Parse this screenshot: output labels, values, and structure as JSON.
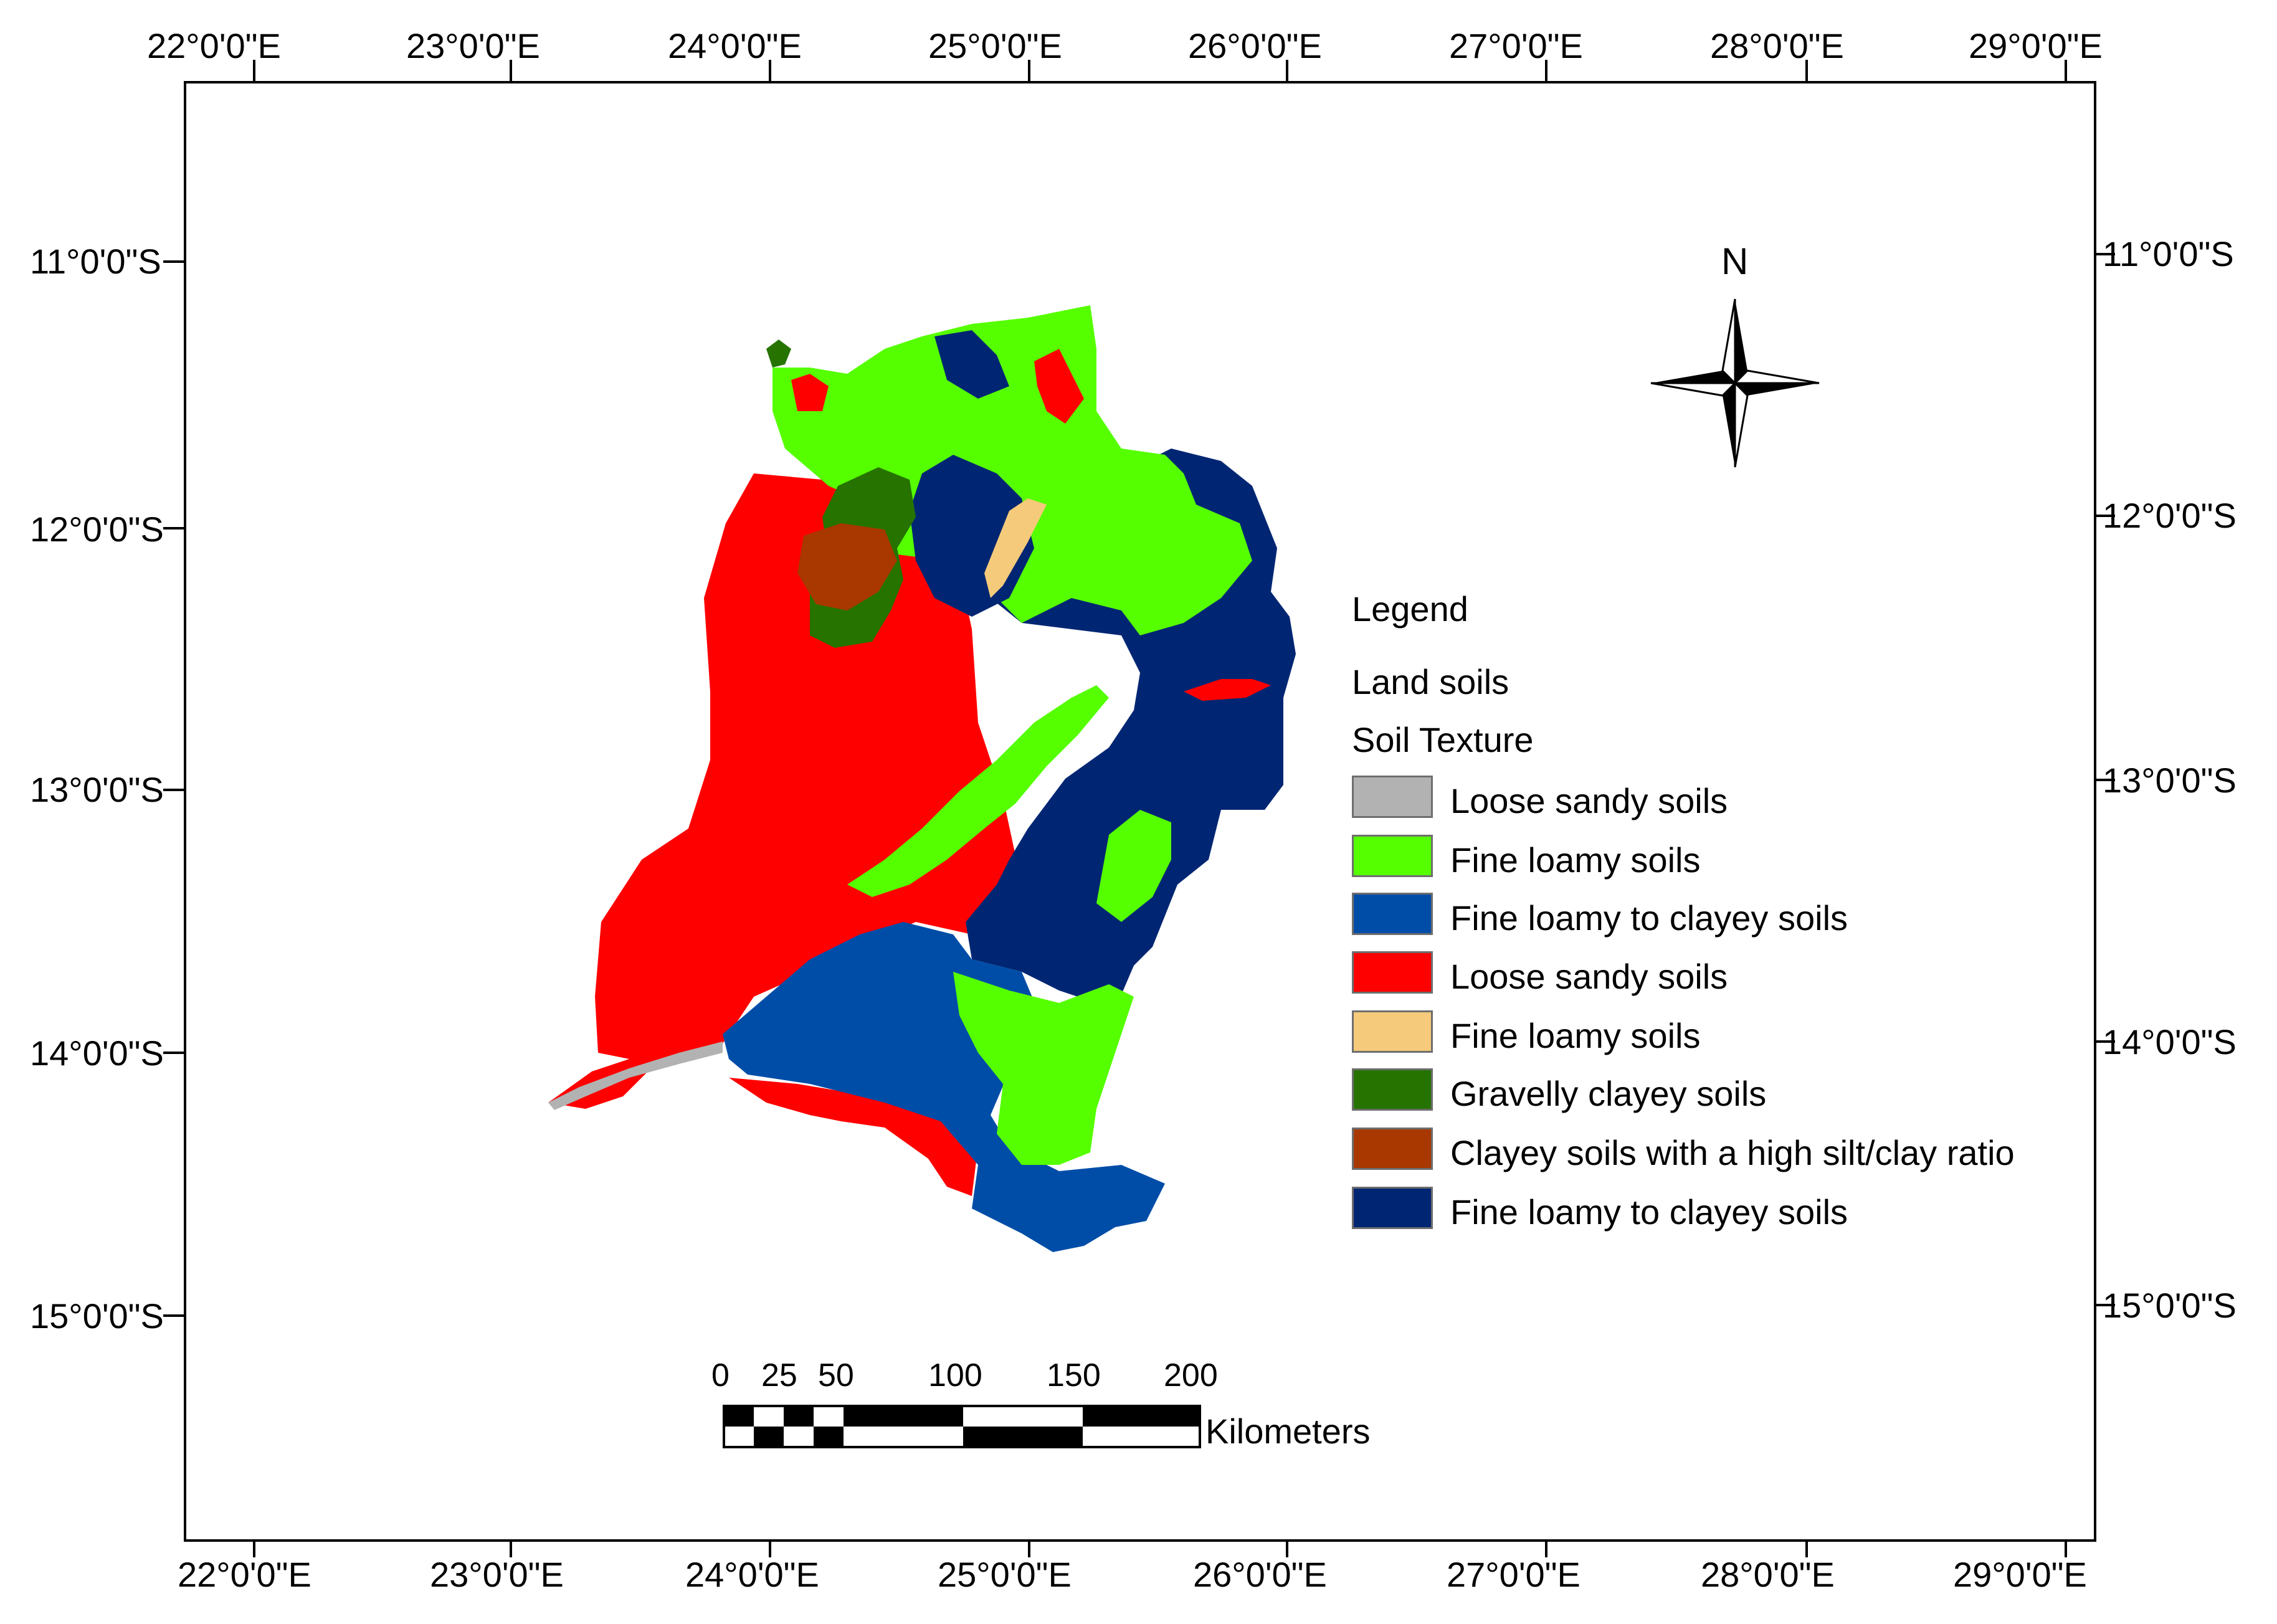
{
  "map": {
    "x_ticks": [
      "22°0'0\"E",
      "23°0'0\"E",
      "24°0'0\"E",
      "25°0'0\"E",
      "26°0'0\"E",
      "27°0'0\"E",
      "28°0'0\"E",
      "29°0'0\"E"
    ],
    "y_ticks": [
      "11°0'0\"S",
      "12°0'0\"S",
      "13°0'0\"S",
      "14°0'0\"S",
      "15°0'0\"S"
    ],
    "north_label": "N"
  },
  "legend": {
    "title": "Legend",
    "layer": "Land soils",
    "field": "Soil Texture",
    "items": [
      {
        "label": "Loose sandy soils",
        "color": "#b2b2b2"
      },
      {
        "label": "Fine loamy soils",
        "color": "#55ff00"
      },
      {
        "label": "Fine loamy to clayey soils",
        "color": "#004da8"
      },
      {
        "label": "Loose sandy soils",
        "color": "#ff0000"
      },
      {
        "label": "Fine loamy soils",
        "color": "#f5ca7a"
      },
      {
        "label": "Gravelly clayey soils",
        "color": "#267300"
      },
      {
        "label": "Clayey soils with a high silt/clay ratio",
        "color": "#a83800"
      },
      {
        "label": "Fine loamy to clayey soils",
        "color": "#002673"
      }
    ]
  },
  "scale_bar": {
    "ticks": [
      "0",
      "25",
      "50",
      "100",
      "150",
      "200"
    ],
    "unit": "Kilometers"
  }
}
